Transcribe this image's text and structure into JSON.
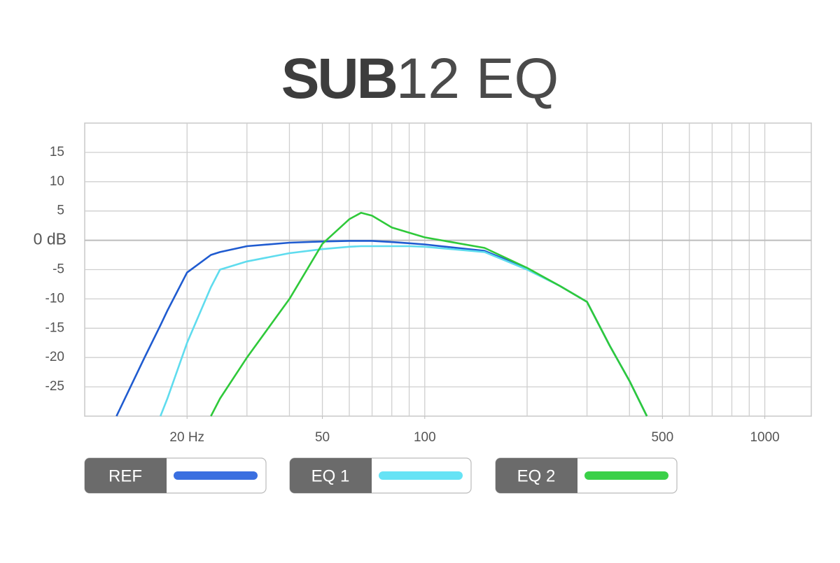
{
  "chart_data": {
    "type": "line",
    "title": [
      "SUB",
      "12 EQ"
    ],
    "x": [
      12.4,
      15,
      16.7,
      17.5,
      20,
      23.5,
      25,
      30,
      40,
      50,
      60,
      65,
      70,
      80,
      90,
      100,
      150,
      200,
      250,
      300,
      350,
      400,
      450
    ],
    "series": [
      {
        "name": "REF",
        "color": "#1f5bd0",
        "legend_color": "#3a6fe0",
        "values": [
          -30,
          -20,
          -14.5,
          -12,
          -5.5,
          -2.5,
          -2,
          -1,
          -0.4,
          -0.2,
          -0.1,
          -0.1,
          -0.1,
          -0.3,
          -0.5,
          -0.7,
          -1.8,
          -4.8,
          -7.8,
          -10.5,
          -18,
          -24,
          -30
        ]
      },
      {
        "name": "EQ 1",
        "color": "#5fdcee",
        "legend_color": "#66e3f5",
        "values": [
          null,
          null,
          -30,
          -27,
          -17.5,
          -8,
          -5,
          -3.6,
          -2.2,
          -1.5,
          -1.1,
          -1,
          -1,
          -1,
          -1,
          -1.1,
          -2,
          -5,
          -7.8,
          -10.5,
          -18,
          -24,
          -30
        ]
      },
      {
        "name": "EQ 2",
        "color": "#2fc93a",
        "legend_color": "#3ad048",
        "values": [
          null,
          null,
          null,
          null,
          null,
          -30,
          -27,
          -20,
          -10,
          -0.6,
          3.6,
          4.7,
          4.2,
          2.2,
          1.3,
          0.5,
          -1.3,
          -4.7,
          -7.8,
          -10.5,
          -18,
          -24,
          -30
        ]
      }
    ],
    "xlog": true,
    "xlim": [
      10,
      1370
    ],
    "xticks": [
      {
        "value": 20,
        "label": "20 Hz"
      },
      50,
      100,
      500,
      1000
    ],
    "xgrid": [
      20,
      30,
      40,
      50,
      60,
      70,
      80,
      90,
      100,
      200,
      300,
      400,
      500,
      600,
      700,
      800,
      900,
      1000
    ],
    "ylim": [
      -30,
      20
    ],
    "yticks": [
      15,
      10,
      5,
      {
        "value": 0,
        "label": "0 dB"
      },
      -5,
      -10,
      -15,
      -20,
      -25
    ],
    "grid": true,
    "legend": "bottom"
  }
}
